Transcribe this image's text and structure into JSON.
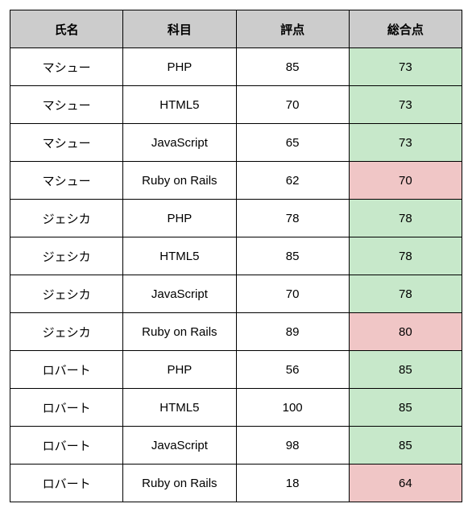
{
  "table": {
    "header_bg": "#cccccc",
    "row_bg": "#ffffff",
    "total_green_bg": "#c7e8ca",
    "total_red_bg": "#f0c6c6",
    "border_color": "#000000",
    "columns": [
      {
        "key": "name",
        "label": "氏名"
      },
      {
        "key": "subject",
        "label": "科目"
      },
      {
        "key": "score",
        "label": "評点"
      },
      {
        "key": "total",
        "label": "総合点"
      }
    ],
    "rows": [
      {
        "name": "マシュー",
        "subject": "PHP",
        "score": 85,
        "total": 73,
        "total_style": "green"
      },
      {
        "name": "マシュー",
        "subject": "HTML5",
        "score": 70,
        "total": 73,
        "total_style": "green"
      },
      {
        "name": "マシュー",
        "subject": "JavaScript",
        "score": 65,
        "total": 73,
        "total_style": "green"
      },
      {
        "name": "マシュー",
        "subject": "Ruby on Rails",
        "score": 62,
        "total": 70,
        "total_style": "red"
      },
      {
        "name": "ジェシカ",
        "subject": "PHP",
        "score": 78,
        "total": 78,
        "total_style": "green"
      },
      {
        "name": "ジェシカ",
        "subject": "HTML5",
        "score": 85,
        "total": 78,
        "total_style": "green"
      },
      {
        "name": "ジェシカ",
        "subject": "JavaScript",
        "score": 70,
        "total": 78,
        "total_style": "green"
      },
      {
        "name": "ジェシカ",
        "subject": "Ruby on Rails",
        "score": 89,
        "total": 80,
        "total_style": "red"
      },
      {
        "name": "ロバート",
        "subject": "PHP",
        "score": 56,
        "total": 85,
        "total_style": "green"
      },
      {
        "name": "ロバート",
        "subject": "HTML5",
        "score": 100,
        "total": 85,
        "total_style": "green"
      },
      {
        "name": "ロバート",
        "subject": "JavaScript",
        "score": 98,
        "total": 85,
        "total_style": "green"
      },
      {
        "name": "ロバート",
        "subject": "Ruby on Rails",
        "score": 18,
        "total": 64,
        "total_style": "red"
      }
    ]
  }
}
